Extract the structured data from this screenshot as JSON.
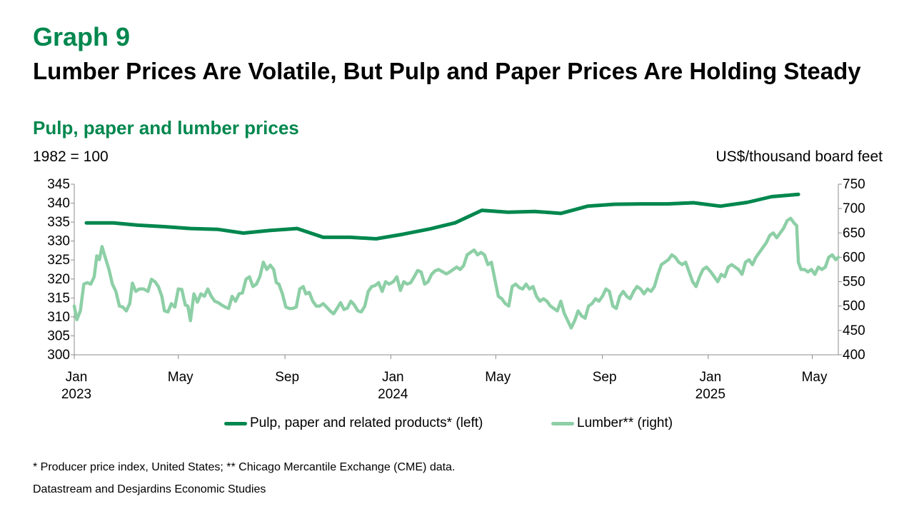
{
  "header": {
    "graph_number": "Graph 9",
    "title": "Lumber Prices Are Volatile, But Pulp and Paper Prices Are Holding Steady",
    "subtitle": "Pulp, paper and lumber prices",
    "left_unit": "1982 = 100",
    "right_unit": "US$/thousand board feet"
  },
  "footer": {
    "footnote": "* Producer price index, United States; ** Chicago Mercantile Exchange (CME) data.",
    "source": "Datastream and Desjardins Economic Studies"
  },
  "colors": {
    "pulp": "#00874E",
    "lumber": "#8DCFA6",
    "accent": "#00874E"
  },
  "chart_data": {
    "type": "line",
    "x_range": [
      "2023-01-01",
      "2025-05-31"
    ],
    "x_ticks": [
      {
        "date": "2023-01-01",
        "line1": "Jan",
        "line2": "2023"
      },
      {
        "date": "2023-05-01",
        "line1": "May",
        "line2": ""
      },
      {
        "date": "2023-09-01",
        "line1": "Sep",
        "line2": ""
      },
      {
        "date": "2024-01-01",
        "line1": "Jan",
        "line2": "2024"
      },
      {
        "date": "2024-05-01",
        "line1": "May",
        "line2": ""
      },
      {
        "date": "2024-09-01",
        "line1": "Sep",
        "line2": ""
      },
      {
        "date": "2025-01-01",
        "line1": "Jan",
        "line2": "2025"
      },
      {
        "date": "2025-05-01",
        "line1": "May",
        "line2": ""
      }
    ],
    "y_left": {
      "label": "1982 = 100",
      "min": 300,
      "max": 345,
      "ticks": [
        300,
        305,
        310,
        315,
        320,
        325,
        330,
        335,
        340,
        345
      ]
    },
    "y_right": {
      "label": "US$/thousand board feet",
      "min": 400,
      "max": 750,
      "ticks": [
        400,
        450,
        500,
        550,
        600,
        650,
        700,
        750
      ]
    },
    "grid": false,
    "legend_position": "bottom",
    "series": [
      {
        "name": "Pulp, paper and related products* (left)",
        "axis": "left",
        "points": [
          [
            "2023-01-15",
            334.8
          ],
          [
            "2023-02-15",
            334.8
          ],
          [
            "2023-03-15",
            334.2
          ],
          [
            "2023-04-15",
            333.8
          ],
          [
            "2023-05-15",
            333.3
          ],
          [
            "2023-06-15",
            333.1
          ],
          [
            "2023-07-15",
            332.1
          ],
          [
            "2023-08-15",
            332.8
          ],
          [
            "2023-09-15",
            333.3
          ],
          [
            "2023-10-15",
            331.0
          ],
          [
            "2023-11-15",
            331.0
          ],
          [
            "2023-12-15",
            330.6
          ],
          [
            "2024-01-15",
            331.8
          ],
          [
            "2024-02-15",
            333.2
          ],
          [
            "2024-03-15",
            334.8
          ],
          [
            "2024-04-15",
            338.1
          ],
          [
            "2024-05-15",
            337.6
          ],
          [
            "2024-06-15",
            337.8
          ],
          [
            "2024-07-15",
            337.3
          ],
          [
            "2024-08-15",
            339.2
          ],
          [
            "2024-09-15",
            339.7
          ],
          [
            "2024-10-15",
            339.8
          ],
          [
            "2024-11-15",
            339.8
          ],
          [
            "2024-12-15",
            340.1
          ],
          [
            "2025-01-15",
            339.2
          ],
          [
            "2025-02-15",
            340.2
          ],
          [
            "2025-03-15",
            341.7
          ],
          [
            "2025-04-15",
            342.3
          ]
        ]
      },
      {
        "name": "Lumber** (right)",
        "axis": "right",
        "points": [
          [
            "2023-01-01",
            500
          ],
          [
            "2023-01-04",
            472
          ],
          [
            "2023-01-08",
            490
          ],
          [
            "2023-01-12",
            545
          ],
          [
            "2023-01-16",
            548
          ],
          [
            "2023-01-20",
            545
          ],
          [
            "2023-01-24",
            560
          ],
          [
            "2023-01-27",
            603
          ],
          [
            "2023-01-30",
            595
          ],
          [
            "2023-02-02",
            622
          ],
          [
            "2023-02-06",
            598
          ],
          [
            "2023-02-10",
            575
          ],
          [
            "2023-02-14",
            545
          ],
          [
            "2023-02-18",
            530
          ],
          [
            "2023-02-22",
            500
          ],
          [
            "2023-02-26",
            498
          ],
          [
            "2023-03-02",
            490
          ],
          [
            "2023-03-06",
            505
          ],
          [
            "2023-03-09",
            547
          ],
          [
            "2023-03-13",
            530
          ],
          [
            "2023-03-17",
            535
          ],
          [
            "2023-03-22",
            535
          ],
          [
            "2023-03-27",
            530
          ],
          [
            "2023-03-31",
            555
          ],
          [
            "2023-04-04",
            550
          ],
          [
            "2023-04-08",
            540
          ],
          [
            "2023-04-12",
            520
          ],
          [
            "2023-04-15",
            490
          ],
          [
            "2023-04-19",
            488
          ],
          [
            "2023-04-23",
            505
          ],
          [
            "2023-04-27",
            498
          ],
          [
            "2023-05-01",
            535
          ],
          [
            "2023-05-05",
            534
          ],
          [
            "2023-05-09",
            502
          ],
          [
            "2023-05-12",
            500
          ],
          [
            "2023-05-15",
            470
          ],
          [
            "2023-05-19",
            525
          ],
          [
            "2023-05-23",
            508
          ],
          [
            "2023-05-27",
            525
          ],
          [
            "2023-05-31",
            520
          ],
          [
            "2023-06-04",
            535
          ],
          [
            "2023-06-08",
            520
          ],
          [
            "2023-06-12",
            510
          ],
          [
            "2023-06-16",
            507
          ],
          [
            "2023-06-20",
            502
          ],
          [
            "2023-06-24",
            498
          ],
          [
            "2023-06-28",
            495
          ],
          [
            "2023-07-02",
            520
          ],
          [
            "2023-07-06",
            510
          ],
          [
            "2023-07-10",
            525
          ],
          [
            "2023-07-14",
            527
          ],
          [
            "2023-07-18",
            555
          ],
          [
            "2023-07-22",
            560
          ],
          [
            "2023-07-26",
            540
          ],
          [
            "2023-07-30",
            545
          ],
          [
            "2023-08-03",
            560
          ],
          [
            "2023-08-07",
            590
          ],
          [
            "2023-08-11",
            575
          ],
          [
            "2023-08-15",
            584
          ],
          [
            "2023-08-19",
            575
          ],
          [
            "2023-08-22",
            548
          ],
          [
            "2023-08-25",
            545
          ],
          [
            "2023-08-29",
            525
          ],
          [
            "2023-09-02",
            498
          ],
          [
            "2023-09-06",
            495
          ],
          [
            "2023-09-10",
            495
          ],
          [
            "2023-09-14",
            498
          ],
          [
            "2023-09-18",
            535
          ],
          [
            "2023-09-22",
            540
          ],
          [
            "2023-09-25",
            525
          ],
          [
            "2023-09-29",
            528
          ],
          [
            "2023-10-03",
            510
          ],
          [
            "2023-10-07",
            500
          ],
          [
            "2023-10-11",
            500
          ],
          [
            "2023-10-15",
            505
          ],
          [
            "2023-10-19",
            498
          ],
          [
            "2023-10-23",
            490
          ],
          [
            "2023-10-27",
            484
          ],
          [
            "2023-10-31",
            495
          ],
          [
            "2023-11-04",
            507
          ],
          [
            "2023-11-08",
            493
          ],
          [
            "2023-11-12",
            496
          ],
          [
            "2023-11-16",
            510
          ],
          [
            "2023-11-20",
            502
          ],
          [
            "2023-11-24",
            490
          ],
          [
            "2023-11-28",
            488
          ],
          [
            "2023-12-02",
            500
          ],
          [
            "2023-12-06",
            530
          ],
          [
            "2023-12-10",
            540
          ],
          [
            "2023-12-14",
            542
          ],
          [
            "2023-12-18",
            548
          ],
          [
            "2023-12-22",
            530
          ],
          [
            "2023-12-26",
            550
          ],
          [
            "2023-12-30",
            545
          ],
          [
            "2024-01-04",
            550
          ],
          [
            "2024-01-08",
            560
          ],
          [
            "2024-01-12",
            532
          ],
          [
            "2024-01-16",
            550
          ],
          [
            "2024-01-20",
            545
          ],
          [
            "2024-01-24",
            548
          ],
          [
            "2024-01-28",
            560
          ],
          [
            "2024-02-01",
            573
          ],
          [
            "2024-02-05",
            570
          ],
          [
            "2024-02-09",
            545
          ],
          [
            "2024-02-13",
            550
          ],
          [
            "2024-02-17",
            565
          ],
          [
            "2024-02-21",
            572
          ],
          [
            "2024-02-25",
            575
          ],
          [
            "2024-03-01",
            570
          ],
          [
            "2024-03-05",
            566
          ],
          [
            "2024-03-09",
            570
          ],
          [
            "2024-03-13",
            575
          ],
          [
            "2024-03-17",
            580
          ],
          [
            "2024-03-21",
            575
          ],
          [
            "2024-03-25",
            583
          ],
          [
            "2024-03-29",
            605
          ],
          [
            "2024-04-02",
            610
          ],
          [
            "2024-04-06",
            615
          ],
          [
            "2024-04-10",
            605
          ],
          [
            "2024-04-14",
            610
          ],
          [
            "2024-04-18",
            605
          ],
          [
            "2024-04-22",
            585
          ],
          [
            "2024-04-26",
            590
          ],
          [
            "2024-04-30",
            555
          ],
          [
            "2024-05-04",
            520
          ],
          [
            "2024-05-08",
            515
          ],
          [
            "2024-05-12",
            505
          ],
          [
            "2024-05-16",
            500
          ],
          [
            "2024-05-20",
            540
          ],
          [
            "2024-05-24",
            545
          ],
          [
            "2024-05-28",
            538
          ],
          [
            "2024-06-01",
            535
          ],
          [
            "2024-06-05",
            545
          ],
          [
            "2024-06-09",
            535
          ],
          [
            "2024-06-13",
            540
          ],
          [
            "2024-06-17",
            520
          ],
          [
            "2024-06-21",
            510
          ],
          [
            "2024-06-25",
            515
          ],
          [
            "2024-06-29",
            510
          ],
          [
            "2024-07-03",
            500
          ],
          [
            "2024-07-07",
            495
          ],
          [
            "2024-07-11",
            490
          ],
          [
            "2024-07-15",
            510
          ],
          [
            "2024-07-19",
            485
          ],
          [
            "2024-07-23",
            470
          ],
          [
            "2024-07-27",
            455
          ],
          [
            "2024-07-31",
            470
          ],
          [
            "2024-08-04",
            490
          ],
          [
            "2024-08-08",
            480
          ],
          [
            "2024-08-12",
            475
          ],
          [
            "2024-08-16",
            500
          ],
          [
            "2024-08-20",
            505
          ],
          [
            "2024-08-24",
            515
          ],
          [
            "2024-08-28",
            510
          ],
          [
            "2024-09-01",
            520
          ],
          [
            "2024-09-05",
            535
          ],
          [
            "2024-09-09",
            530
          ],
          [
            "2024-09-13",
            500
          ],
          [
            "2024-09-17",
            495
          ],
          [
            "2024-09-21",
            520
          ],
          [
            "2024-09-25",
            530
          ],
          [
            "2024-09-29",
            520
          ],
          [
            "2024-10-03",
            515
          ],
          [
            "2024-10-07",
            530
          ],
          [
            "2024-10-11",
            540
          ],
          [
            "2024-10-15",
            535
          ],
          [
            "2024-10-19",
            525
          ],
          [
            "2024-10-23",
            535
          ],
          [
            "2024-10-27",
            530
          ],
          [
            "2024-10-31",
            540
          ],
          [
            "2024-11-04",
            565
          ],
          [
            "2024-11-08",
            585
          ],
          [
            "2024-11-12",
            590
          ],
          [
            "2024-11-16",
            595
          ],
          [
            "2024-11-20",
            605
          ],
          [
            "2024-11-24",
            600
          ],
          [
            "2024-11-28",
            590
          ],
          [
            "2024-12-02",
            585
          ],
          [
            "2024-12-06",
            590
          ],
          [
            "2024-12-10",
            570
          ],
          [
            "2024-12-14",
            550
          ],
          [
            "2024-12-18",
            540
          ],
          [
            "2024-12-22",
            560
          ],
          [
            "2024-12-26",
            575
          ],
          [
            "2024-12-30",
            580
          ],
          [
            "2025-01-04",
            570
          ],
          [
            "2025-01-08",
            560
          ],
          [
            "2025-01-12",
            550
          ],
          [
            "2025-01-16",
            565
          ],
          [
            "2025-01-20",
            560
          ],
          [
            "2025-01-24",
            580
          ],
          [
            "2025-01-28",
            585
          ],
          [
            "2025-02-01",
            580
          ],
          [
            "2025-02-05",
            575
          ],
          [
            "2025-02-09",
            565
          ],
          [
            "2025-02-13",
            590
          ],
          [
            "2025-02-17",
            595
          ],
          [
            "2025-02-21",
            585
          ],
          [
            "2025-02-25",
            600
          ],
          [
            "2025-03-01",
            610
          ],
          [
            "2025-03-05",
            620
          ],
          [
            "2025-03-09",
            630
          ],
          [
            "2025-03-13",
            645
          ],
          [
            "2025-03-17",
            650
          ],
          [
            "2025-03-21",
            640
          ],
          [
            "2025-03-25",
            650
          ],
          [
            "2025-03-29",
            660
          ],
          [
            "2025-04-02",
            675
          ],
          [
            "2025-04-06",
            680
          ],
          [
            "2025-04-10",
            670
          ],
          [
            "2025-04-13",
            665
          ],
          [
            "2025-04-15",
            590
          ],
          [
            "2025-04-18",
            575
          ],
          [
            "2025-04-22",
            575
          ],
          [
            "2025-04-26",
            570
          ],
          [
            "2025-04-30",
            575
          ],
          [
            "2025-05-04",
            565
          ],
          [
            "2025-05-08",
            580
          ],
          [
            "2025-05-12",
            575
          ],
          [
            "2025-05-16",
            580
          ],
          [
            "2025-05-20",
            600
          ],
          [
            "2025-05-24",
            605
          ],
          [
            "2025-05-28",
            595
          ],
          [
            "2025-05-31",
            600
          ]
        ]
      }
    ]
  }
}
